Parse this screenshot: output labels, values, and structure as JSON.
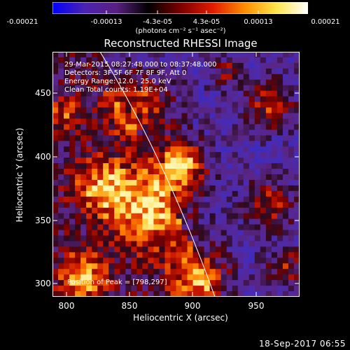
{
  "colorbar": {
    "tick_labels": [
      "-0.00021",
      "-0.00013",
      "-4.3e-05",
      "4.3e-05",
      "0.00013",
      "0.00021"
    ],
    "unit": "(photons cm⁻² s⁻¹ asec⁻²)",
    "colors": [
      "#0000ff",
      "#4b22b2",
      "#5a2080",
      "#000000",
      "#7a0000",
      "#e01a00",
      "#ff8a00",
      "#ffe44a",
      "#ffffff"
    ]
  },
  "image": {
    "title": "Reconstructed RHESSI Image",
    "info_lines": [
      "29-Mar-2015 08:27:48.000 to 08:37:48.000",
      "Detectors: 3F 5F 6F 7F 8F 9F, Att 0",
      "Energy Range: 12.0 - 25.0 keV",
      "Clean     Total counts: 1.19E+04"
    ],
    "peak_label": "Position of Peak = [798,297]",
    "x_axis": {
      "label": "Heliocentric X (arcsec)",
      "ticks": [
        "800",
        "850",
        "900",
        "950"
      ],
      "range": [
        790,
        985
      ]
    },
    "y_axis": {
      "label": "Heliocentric Y (arcsec)",
      "ticks": [
        "300",
        "350",
        "400",
        "450"
      ],
      "range": [
        288,
        480
      ]
    },
    "limb_line": true
  },
  "timestamp": "18-Sep-2017 06:55"
}
